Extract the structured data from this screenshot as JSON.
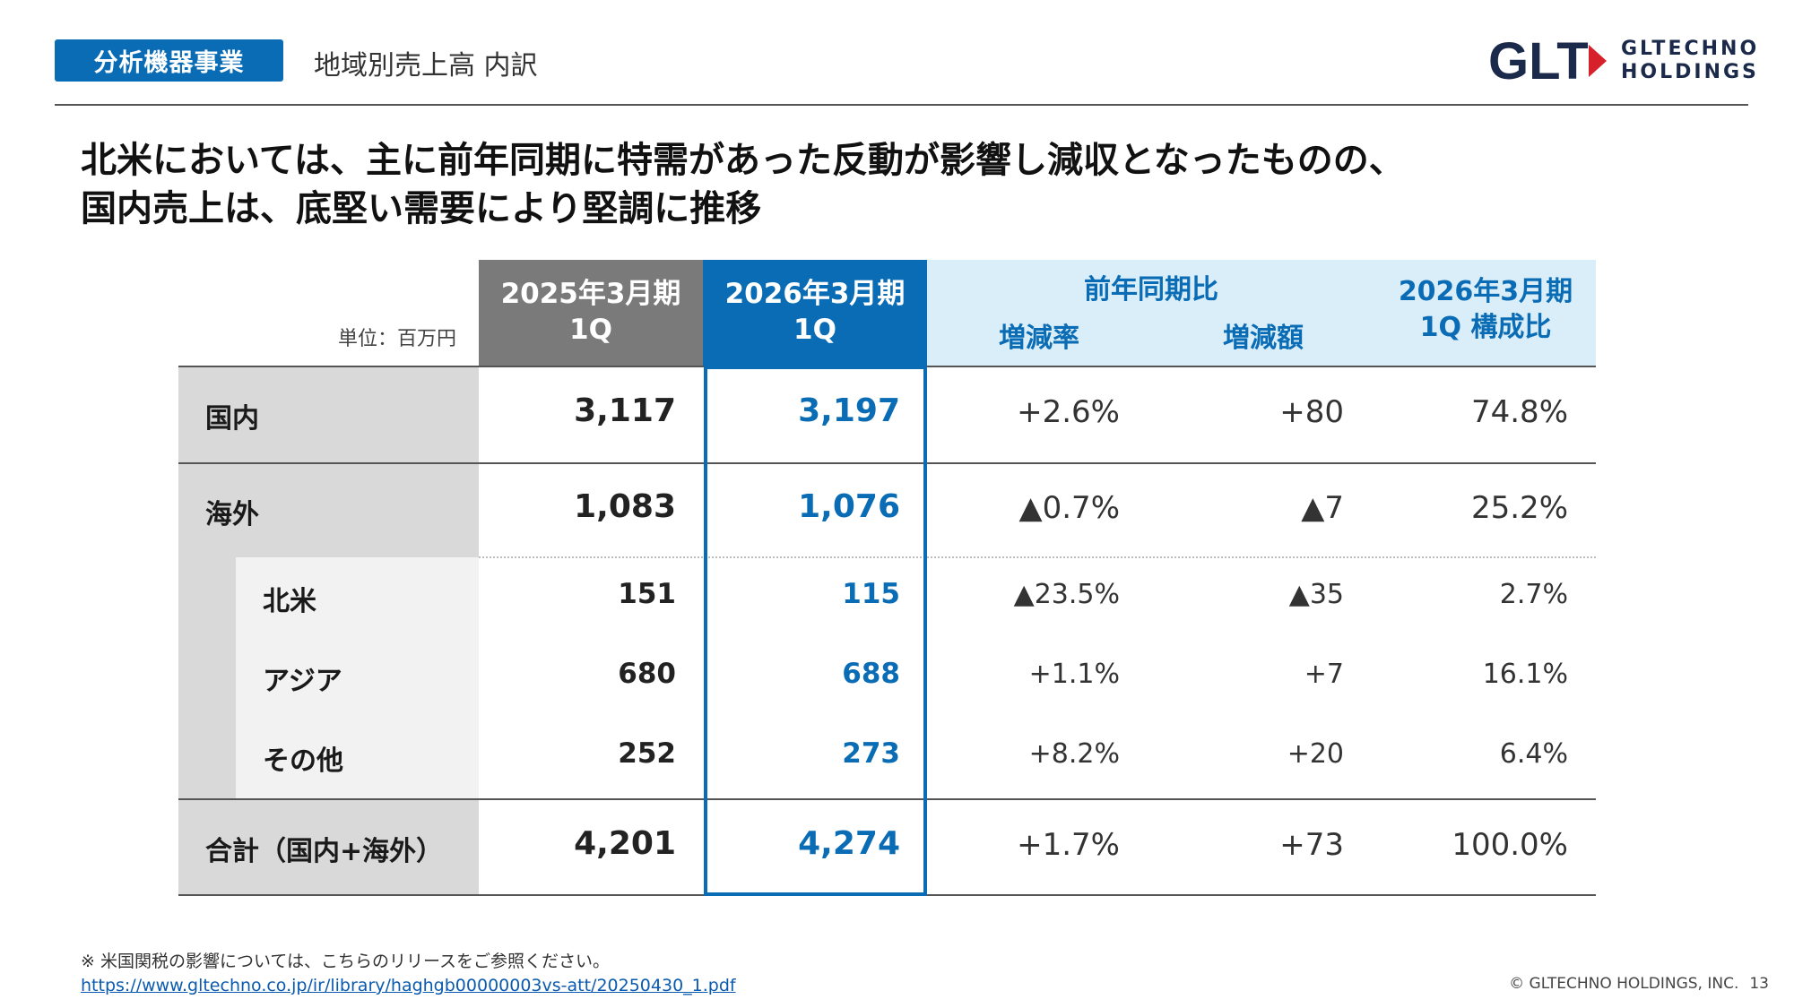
{
  "header": {
    "tag": "分析機器事業",
    "section_title": "地域別売上高 内訳",
    "logo_mark": "GLT",
    "logo_line1": "GLTECHNO",
    "logo_line2": "HOLDINGS"
  },
  "headline": {
    "line1": "北米においては、主に前年同期に特需があった反動が影響し減収となったものの、",
    "line2": "国内売上は、底堅い需要により堅調に推移"
  },
  "table": {
    "unit": "単位：百万円",
    "col_prev_line1": "2025年3月期",
    "col_prev_line2": "1Q",
    "col_curr_line1": "2026年3月期",
    "col_curr_line2": "1Q",
    "yoy_group": "前年同期比",
    "col_rate": "増減率",
    "col_amount": "増減額",
    "col_comp_line1": "2026年3月期",
    "col_comp_line2": "1Q 構成比",
    "rows": [
      {
        "label": "国内",
        "prev": "3,117",
        "curr": "3,197",
        "rate": "+2.6%",
        "amount": "+80",
        "comp": "74.8%"
      },
      {
        "label": "海外",
        "prev": "1,083",
        "curr": "1,076",
        "rate": "▲0.7%",
        "amount": "▲7",
        "comp": "25.2%"
      },
      {
        "label": "北米",
        "prev": "151",
        "curr": "115",
        "rate": "▲23.5%",
        "amount": "▲35",
        "comp": "2.7%"
      },
      {
        "label": "アジア",
        "prev": "680",
        "curr": "688",
        "rate": "+1.1%",
        "amount": "+7",
        "comp": "16.1%"
      },
      {
        "label": "その他",
        "prev": "252",
        "curr": "273",
        "rate": "+8.2%",
        "amount": "+20",
        "comp": "6.4%"
      },
      {
        "label": "合計（国内+海外）",
        "prev": "4,201",
        "curr": "4,274",
        "rate": "+1.7%",
        "amount": "+73",
        "comp": "100.0%"
      }
    ]
  },
  "footer": {
    "note": "※ 米国関税の影響については、こちらのリリースをご参照ください。",
    "link": "https://www.gltechno.co.jp/ir/library/haghgb00000003vs-att/20250430_1.pdf",
    "copyright": "© GLTECHNO HOLDINGS, INC.",
    "page": "13"
  },
  "colors": {
    "brand_blue": "#0a6cb5",
    "header_gray": "#7a7a7a",
    "light_blue": "#daeef9",
    "logo_red": "#d6202a"
  }
}
